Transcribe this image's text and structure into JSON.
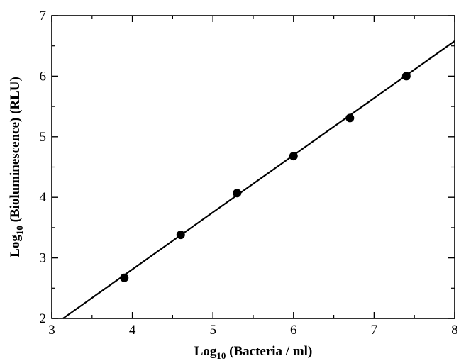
{
  "chart_data": {
    "type": "scatter",
    "xlabel": {
      "prefix": "Log",
      "subscript": "10",
      "rest": " (Bacteria / ml)"
    },
    "ylabel": {
      "prefix": "Log",
      "subscript": "10",
      "rest": " (Bioluminescence) (RLU)"
    },
    "xlim": [
      3,
      8
    ],
    "ylim": [
      2,
      7
    ],
    "x_ticks": [
      "3",
      "4",
      "5",
      "6",
      "7",
      "8"
    ],
    "y_ticks": [
      "2",
      "3",
      "4",
      "5",
      "6",
      "7"
    ],
    "grid": false,
    "legend": "none",
    "series": [
      {
        "x": [
          3.9,
          4.6,
          5.3,
          6.0,
          6.7,
          7.4
        ],
        "y": [
          2.67,
          3.38,
          4.07,
          4.68,
          5.31,
          6.0
        ],
        "marker": "filled-circle",
        "color": "#000000"
      }
    ],
    "fit_line": {
      "x": [
        3.14,
        8.0
      ],
      "y": [
        2.0,
        6.58
      ],
      "color": "#000000"
    }
  }
}
